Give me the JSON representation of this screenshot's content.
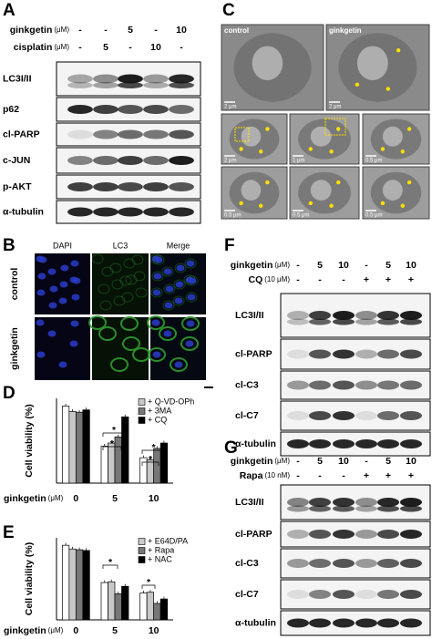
{
  "panels": {
    "A": {
      "label": "A",
      "treatments": [
        {
          "name": "ginkgetin",
          "unit": "(μM)",
          "lanes": [
            "-",
            "-",
            "5",
            "-",
            "10"
          ]
        },
        {
          "name": "cisplatin",
          "unit": "(μM)",
          "lanes": [
            "-",
            "5",
            "-",
            "10",
            "-"
          ]
        }
      ],
      "blots": [
        "LC3I/II",
        "p62",
        "cl-PARP",
        "c-JUN",
        "p-AKT",
        "α-tubulin"
      ]
    },
    "C": {
      "label": "C",
      "images": [
        {
          "label": "control",
          "scale": "2 μm"
        },
        {
          "label": "ginkgetin",
          "scale": "2 μm"
        },
        {
          "scale": "2 μm"
        },
        {
          "scale": "1 μm"
        },
        {
          "scale": "0.5 μm"
        },
        {
          "scale": "0.5 μm"
        },
        {
          "scale": "0.5 μm"
        },
        {
          "scale": "0.5 μm"
        }
      ]
    },
    "B": {
      "label": "B",
      "columns": [
        "DAPI",
        "LC3",
        "Merge"
      ],
      "rows": [
        "control",
        "ginkgetin"
      ]
    },
    "D": {
      "label": "D",
      "chart_data": {
        "type": "bar",
        "y_label": "Cell viability (%)",
        "x_label": "ginkgetin",
        "x_unit": "(μM)",
        "categories": [
          "0",
          "5",
          "10"
        ],
        "ylim": [
          0,
          110
        ],
        "series": [
          {
            "color": "#ffffff",
            "values": [
              100,
              48,
              33
            ]
          },
          {
            "name": "+ Q-VD-OPh",
            "color": "#c8c8c8",
            "values": [
              93,
              52,
              30
            ]
          },
          {
            "name": "+ 3MA",
            "color": "#777777",
            "values": [
              92,
              60,
              45
            ]
          },
          {
            "name": "+ CQ",
            "color": "#000000",
            "values": [
              95,
              86,
              52
            ]
          }
        ],
        "annotations": [
          "*",
          "*",
          "*",
          "*"
        ]
      }
    },
    "E": {
      "label": "E",
      "chart_data": {
        "type": "bar",
        "y_label": "Cell viability (%)",
        "x_label": "ginkgetin",
        "x_unit": "(μM)",
        "categories": [
          "0",
          "5",
          "10"
        ],
        "ylim": [
          0,
          110
        ],
        "series": [
          {
            "color": "#ffffff",
            "values": [
              100,
              50,
              36
            ]
          },
          {
            "name": "+ E64D/PA",
            "color": "#c8c8c8",
            "values": [
              95,
              51,
              37
            ]
          },
          {
            "name": "+ Rapa",
            "color": "#777777",
            "values": [
              94,
              35,
              22
            ]
          },
          {
            "name": "+ NAC",
            "color": "#000000",
            "values": [
              93,
              45,
              28
            ]
          }
        ],
        "annotations": [
          "*",
          "*"
        ]
      }
    },
    "F": {
      "label": "F",
      "treatments": [
        {
          "name": "ginkgetin",
          "unit": "(μM)",
          "lanes": [
            "-",
            "5",
            "10",
            "-",
            "5",
            "10"
          ]
        },
        {
          "name": "CQ",
          "unit": "(10 μM)",
          "lanes": [
            "-",
            "-",
            "-",
            "+",
            "+",
            "+"
          ]
        }
      ],
      "blots": [
        "LC3I/II",
        "cl-PARP",
        "cl-C3",
        "cl-C7",
        "α-tubulin"
      ]
    },
    "G": {
      "label": "G",
      "treatments": [
        {
          "name": "ginkgetin",
          "unit": "(μM)",
          "lanes": [
            "-",
            "5",
            "10",
            "-",
            "5",
            "10"
          ]
        },
        {
          "name": "Rapa",
          "unit": "(10 nM)",
          "lanes": [
            "-",
            "-",
            "-",
            "+",
            "+",
            "+"
          ]
        }
      ],
      "blots": [
        "LC3I/II",
        "cl-PARP",
        "cl-C3",
        "cl-C7",
        "α-tubulin"
      ]
    }
  }
}
